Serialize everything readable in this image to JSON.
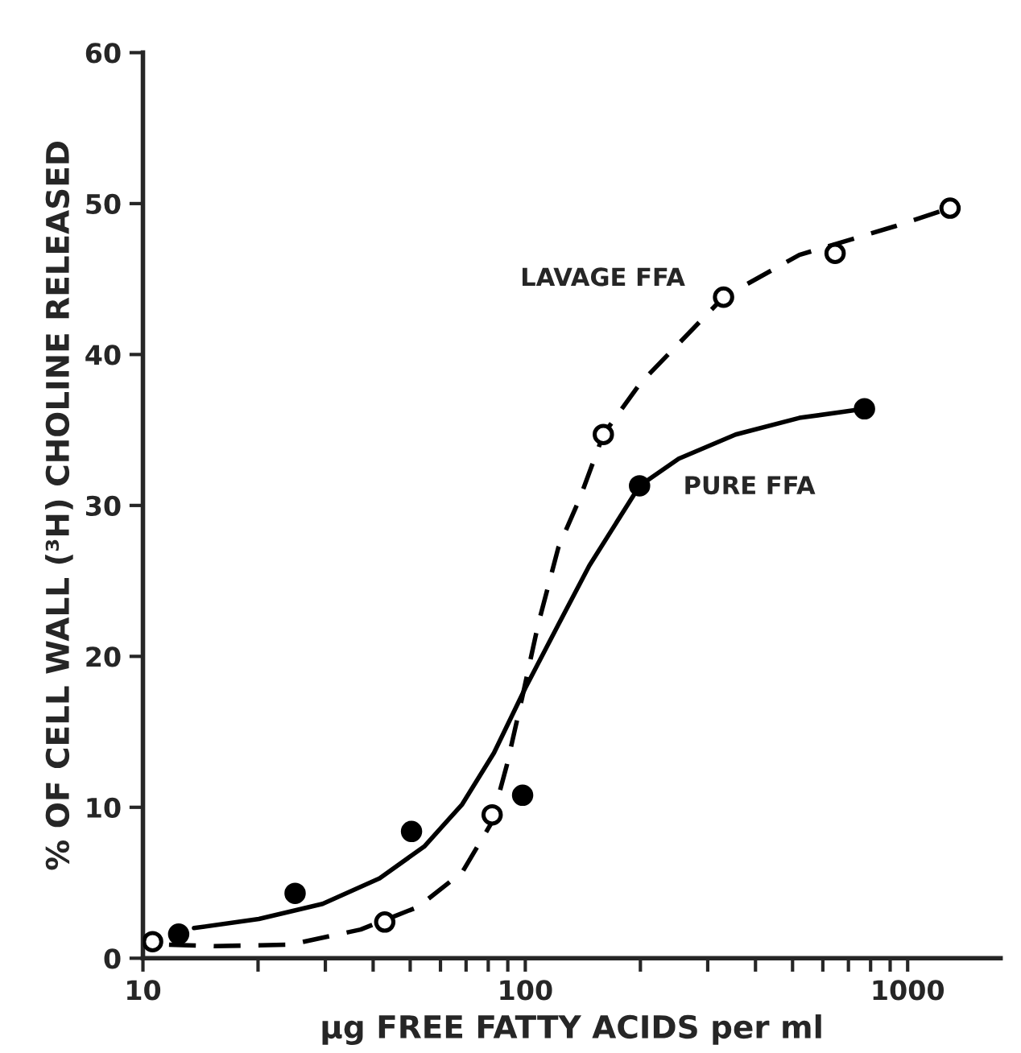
{
  "chart_data": {
    "type": "scatter",
    "xlabel": "µg FREE FATTY ACIDS per ml",
    "ylabel": "% OF CELL WALL (³H) CHOLINE RELEASED",
    "log": "x",
    "xlim": [
      10,
      1750
    ],
    "ylim": [
      0,
      60
    ],
    "xticks": [
      10,
      {
        "value": 20,
        "label": null
      },
      {
        "value": 30,
        "label": null
      },
      {
        "value": 40,
        "label": null
      },
      {
        "value": 50,
        "label": null
      },
      {
        "value": 60,
        "label": null
      },
      {
        "value": 70,
        "label": null
      },
      {
        "value": 80,
        "label": null
      },
      {
        "value": 90,
        "label": null
      },
      100,
      {
        "value": 200,
        "label": null
      },
      {
        "value": 300,
        "label": null
      },
      {
        "value": 400,
        "label": null
      },
      {
        "value": 500,
        "label": null
      },
      {
        "value": 600,
        "label": null
      },
      {
        "value": 700,
        "label": null
      },
      {
        "value": 800,
        "label": null
      },
      {
        "value": 900,
        "label": null
      },
      1000
    ],
    "yticks": [
      0,
      10,
      20,
      30,
      40,
      50,
      60
    ],
    "grid": false,
    "legend": false,
    "series": [
      {
        "type": "line",
        "color": "#000000",
        "line_style": "solid",
        "marker": "none",
        "x": [
          13.6,
          20.1,
          29.5,
          41.6,
          54.4,
          68.4,
          82.8,
          100,
          122,
          147,
          199,
          252,
          355,
          521,
          771
        ],
        "values": [
          2.0,
          2.6,
          3.6,
          5.3,
          7.4,
          10.2,
          13.6,
          17.9,
          22.1,
          26.0,
          31.3,
          33.1,
          34.7,
          35.8,
          36.4
        ]
      },
      {
        "type": "line",
        "color": "#000000",
        "line_style": "dashed",
        "marker": "none",
        "x": [
          11.7,
          15.4,
          24.3,
          37.1,
          52.4,
          68.4,
          81.3,
          89.5,
          98.4,
          108,
          122,
          139,
          160,
          200,
          330,
          521,
          927,
          1291
        ],
        "values": [
          0.9,
          0.8,
          0.9,
          1.9,
          3.4,
          5.7,
          8.9,
          12.8,
          17.4,
          22.1,
          27.2,
          30.5,
          34.7,
          38.1,
          43.8,
          46.6,
          48.5,
          49.7
        ]
      },
      {
        "color": "#000000",
        "marker": "circle",
        "x": [
          12.4,
          25.0,
          50.4,
          98.4,
          199,
          771
        ],
        "values": [
          1.6,
          4.3,
          8.4,
          10.8,
          31.3,
          36.4
        ]
      },
      {
        "color": "#ffffff",
        "marker": "circle",
        "x": [
          10.6,
          42.9,
          81.9,
          160,
          330,
          646,
          1291
        ],
        "values": [
          1.1,
          2.4,
          9.5,
          34.7,
          43.8,
          46.7,
          49.7
        ]
      }
    ],
    "annotations": [
      "LAVAGE FFA",
      "PURE FFA"
    ]
  }
}
